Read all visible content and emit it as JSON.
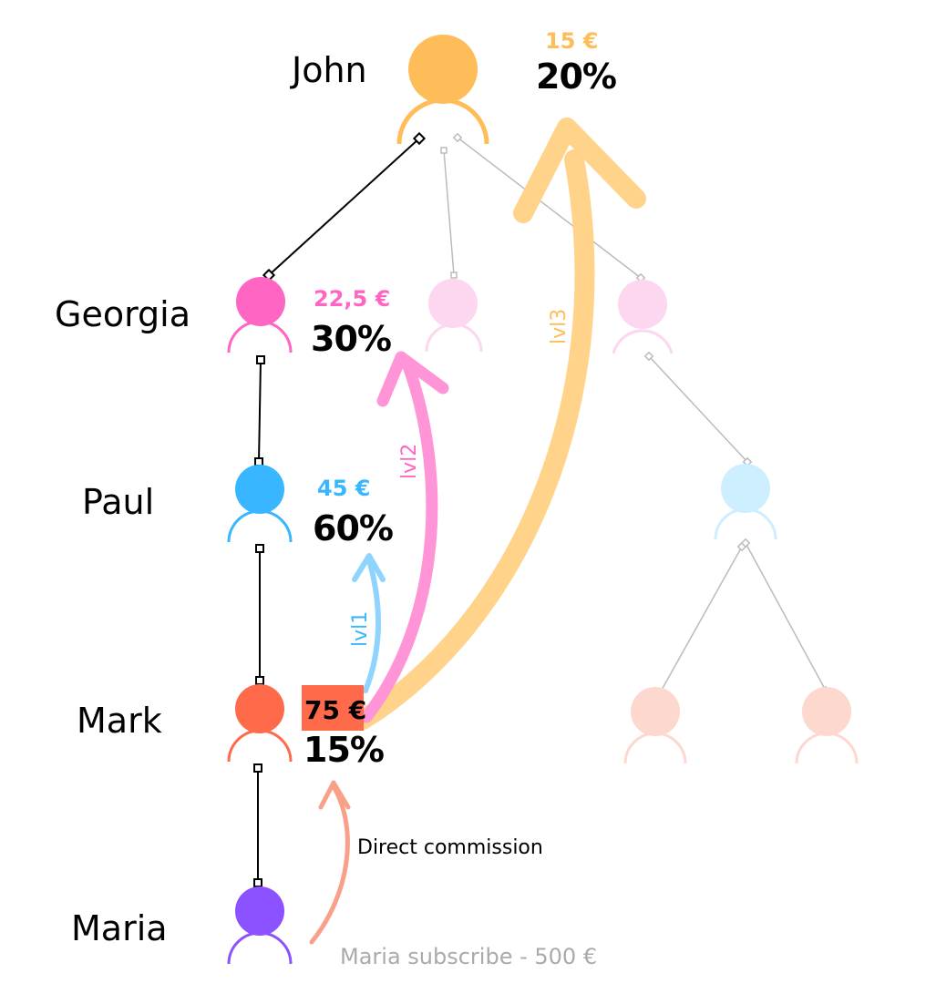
{
  "colors": {
    "john": "#ffbd59",
    "georgia": "#ff66c4",
    "paul": "#38b6ff",
    "mark": "#ff6b4a",
    "maria": "#8c52ff",
    "ghost_pink": "#fdd6ef",
    "ghost_blue": "#cdeefe",
    "ghost_salmon": "#fdd8cf",
    "arrow_lvl1": "#8fd3ff",
    "arrow_lvl2": "#ff94d6",
    "arrow_lvl3": "#ffd38a",
    "arrow_direct": "#f9a089",
    "link_gray": "#bbbbbb"
  },
  "members": {
    "john": {
      "name": "John",
      "amount": "15 €",
      "percent": "20%"
    },
    "georgia": {
      "name": "Georgia",
      "amount": "22,5 €",
      "percent": "30%"
    },
    "paul": {
      "name": "Paul",
      "amount": "45 €",
      "percent": "60%"
    },
    "mark": {
      "name": "Mark",
      "amount": "75 €",
      "percent": "15%"
    },
    "maria": {
      "name": "Maria"
    }
  },
  "arrows": {
    "lvl1": "lvl1",
    "lvl2": "lvl2",
    "lvl3": "lvl3",
    "direct": "Direct commission"
  },
  "subscription": "Maria subscribe - 500 €"
}
